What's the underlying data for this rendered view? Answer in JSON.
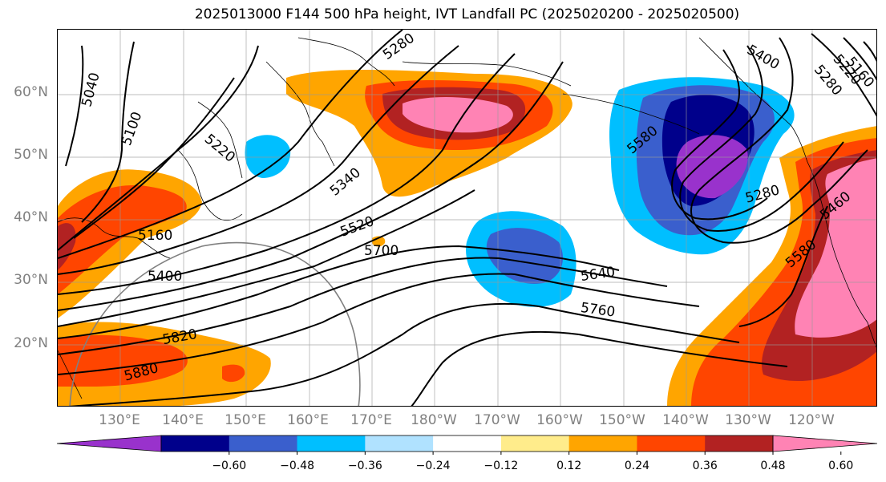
{
  "title": "2025013000 F144 500 hPa height, IVT Landfall PC (2025020200 - 2025020500)",
  "latitude_labels": [
    "60°N",
    "50°N",
    "40°N",
    "30°N",
    "20°N"
  ],
  "longitude_labels": [
    "130°E",
    "140°E",
    "150°E",
    "160°E",
    "170°E",
    "180°W",
    "170°W",
    "160°W",
    "150°W",
    "140°W",
    "130°W",
    "120°W"
  ],
  "contour_labels": [
    "5040",
    "5100",
    "5160",
    "5220",
    "5280",
    "5340",
    "5400",
    "5460",
    "5520",
    "5580",
    "5640",
    "5700",
    "5760",
    "5820",
    "5880"
  ],
  "map_contour_label_instances": [
    {
      "text": "5040"
    },
    {
      "text": "5100"
    },
    {
      "text": "5220"
    },
    {
      "text": "5280"
    },
    {
      "text": "5340"
    },
    {
      "text": "5520"
    },
    {
      "text": "5160"
    },
    {
      "text": "5400"
    },
    {
      "text": "5700"
    },
    {
      "text": "5820"
    },
    {
      "text": "5880"
    },
    {
      "text": "5580"
    },
    {
      "text": "5400"
    },
    {
      "text": "5280"
    },
    {
      "text": "5640"
    },
    {
      "text": "5760"
    },
    {
      "text": "5580"
    },
    {
      "text": "5460"
    },
    {
      "text": "5160"
    },
    {
      "text": "5220"
    },
    {
      "text": "5280"
    }
  ],
  "colorbar": {
    "ticks": [
      "−0.60",
      "−0.48",
      "−0.36",
      "−0.24",
      "−0.12",
      "0.12",
      "0.24",
      "0.36",
      "0.48",
      "0.60"
    ],
    "colors": [
      "#9932cc",
      "#00008b",
      "#3a5fcd",
      "#00bfff",
      "#b0e2ff",
      "#ffffff",
      "#ffec8b",
      "#ffa500",
      "#ff4500",
      "#b22222",
      "#ff83b4"
    ]
  }
}
